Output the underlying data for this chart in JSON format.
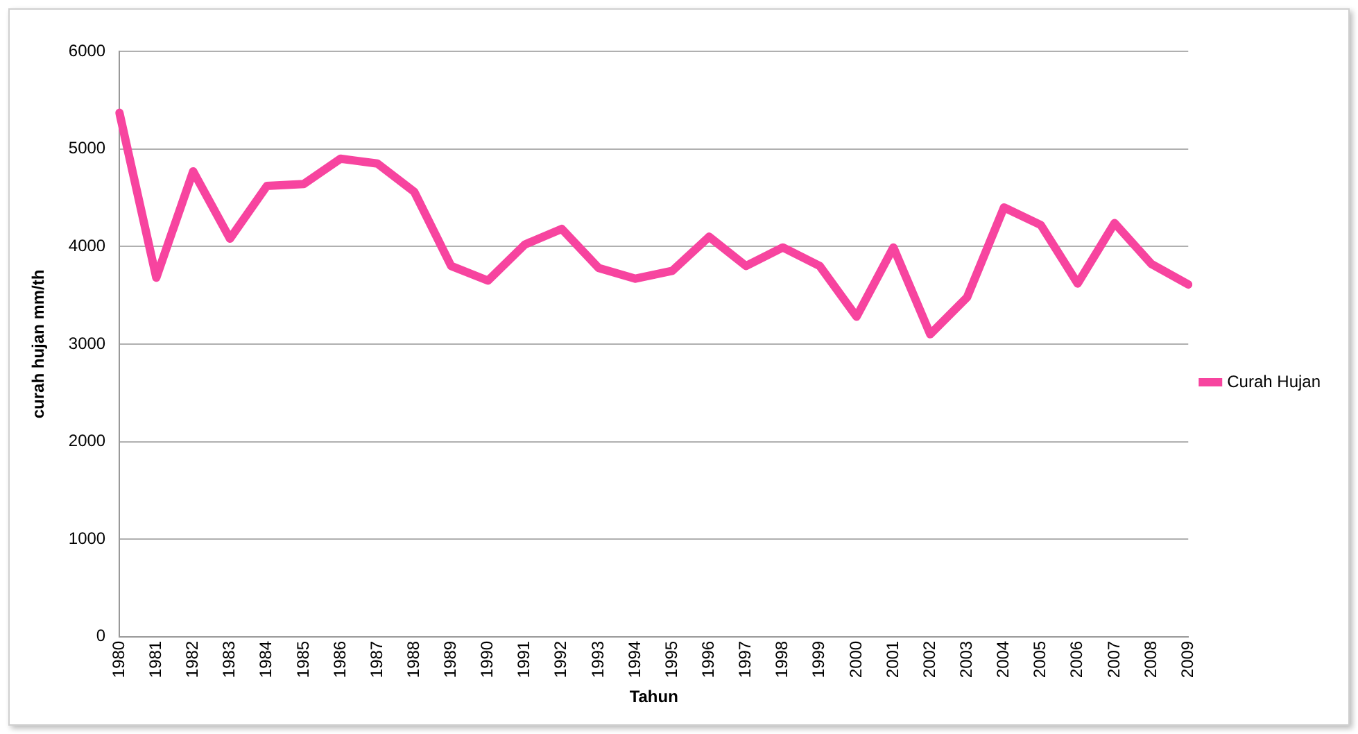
{
  "chart_data": {
    "type": "line",
    "xlabel": "Tahun",
    "ylabel": "curah hujan mm/th",
    "categories": [
      "1980",
      "1981",
      "1982",
      "1983",
      "1984",
      "1985",
      "1986",
      "1987",
      "1988",
      "1989",
      "1990",
      "1991",
      "1992",
      "1993",
      "1994",
      "1995",
      "1996",
      "1997",
      "1998",
      "1999",
      "2000",
      "2001",
      "2002",
      "2003",
      "2004",
      "2005",
      "2006",
      "2007",
      "2008",
      "2009"
    ],
    "series": [
      {
        "name": "Curah Hujan",
        "color": "#f7449f",
        "values": [
          5370,
          3680,
          4770,
          4080,
          4620,
          4640,
          4900,
          4850,
          4560,
          3800,
          3650,
          4020,
          4180,
          3780,
          3670,
          3750,
          4100,
          3800,
          3990,
          3800,
          3280,
          3990,
          3100,
          3480,
          4400,
          4220,
          3620,
          4240,
          3820,
          3610
        ]
      }
    ],
    "ylim": [
      0,
      6000
    ],
    "yticks": [
      0,
      1000,
      2000,
      3000,
      4000,
      5000,
      6000
    ],
    "grid": "y",
    "legend": "right",
    "marker": "none",
    "line_style": "solid"
  }
}
